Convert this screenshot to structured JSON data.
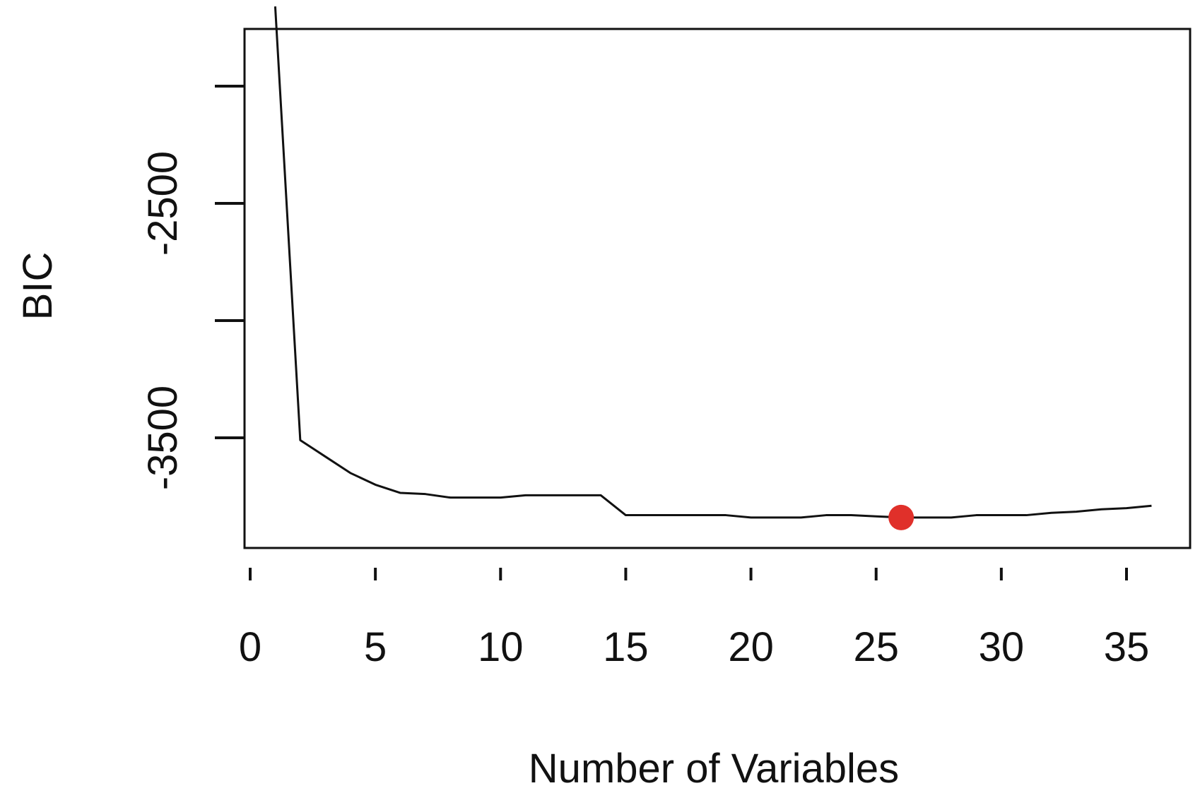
{
  "chart_data": {
    "type": "line",
    "title": "",
    "xlabel": "Number of Variables",
    "ylabel": "BIC",
    "xlim": [
      0,
      37
    ],
    "ylim": [
      -3850,
      -1640
    ],
    "x_ticks": [
      0,
      5,
      10,
      15,
      20,
      25,
      30,
      35
    ],
    "y_ticks": [
      -2000,
      -2500,
      -3000,
      -3500
    ],
    "y_tick_labels": [
      "-2500",
      "-3500"
    ],
    "grid": false,
    "series": [
      {
        "x": [
          1,
          2,
          3,
          4,
          5,
          6,
          7,
          8,
          9,
          10,
          11,
          12,
          13,
          14,
          15,
          16,
          17,
          18,
          19,
          20,
          21,
          22,
          23,
          24,
          25,
          26,
          27,
          28,
          29,
          30,
          31,
          32,
          33,
          34,
          35,
          36
        ],
        "values": [
          -1660,
          -3510,
          -3580,
          -3650,
          -3700,
          -3735,
          -3740,
          -3755,
          -3755,
          -3755,
          -3745,
          -3745,
          -3745,
          -3745,
          -3830,
          -3830,
          -3830,
          -3830,
          -3830,
          -3840,
          -3840,
          -3840,
          -3830,
          -3830,
          -3835,
          -3840,
          -3840,
          -3840,
          -3830,
          -3830,
          -3830,
          -3820,
          -3815,
          -3805,
          -3800,
          -3790
        ],
        "color": "#111111"
      }
    ],
    "highlight": {
      "x": 26,
      "y": -3840,
      "color": "#e0302a"
    }
  }
}
